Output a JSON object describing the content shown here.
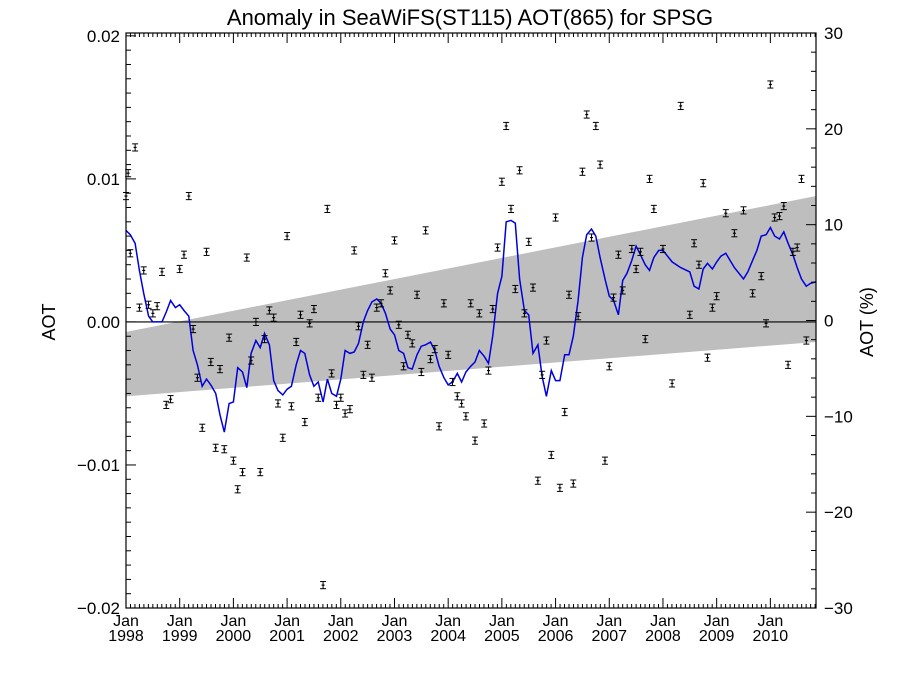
{
  "chart_data": {
    "type": "scatter",
    "title": "Anomaly in SeaWiFS(ST115) AOT(865) for SPSG",
    "ylabel": "AOT",
    "y2label": "AOT (%)",
    "xlabel": "",
    "xlim": [
      1998.0,
      2010.85
    ],
    "ylim": [
      -0.02,
      0.0202
    ],
    "y2lim": [
      -30,
      30
    ],
    "x_ticks": [
      {
        "value": 1998,
        "label_top": "Jan",
        "label_bottom": "1998"
      },
      {
        "value": 1999,
        "label_top": "Jan",
        "label_bottom": "1999"
      },
      {
        "value": 2000,
        "label_top": "Jan",
        "label_bottom": "2000"
      },
      {
        "value": 2001,
        "label_top": "Jan",
        "label_bottom": "2001"
      },
      {
        "value": 2002,
        "label_top": "Jan",
        "label_bottom": "2002"
      },
      {
        "value": 2003,
        "label_top": "Jan",
        "label_bottom": "2003"
      },
      {
        "value": 2004,
        "label_top": "Jan",
        "label_bottom": "2004"
      },
      {
        "value": 2005,
        "label_top": "Jan",
        "label_bottom": "2005"
      },
      {
        "value": 2006,
        "label_top": "Jan",
        "label_bottom": "2006"
      },
      {
        "value": 2007,
        "label_top": "Jan",
        "label_bottom": "2007"
      },
      {
        "value": 2008,
        "label_top": "Jan",
        "label_bottom": "2008"
      },
      {
        "value": 2009,
        "label_top": "Jan",
        "label_bottom": "2009"
      },
      {
        "value": 2010,
        "label_top": "Jan",
        "label_bottom": "2010"
      }
    ],
    "y_ticks": [
      {
        "value": 0.02,
        "label": "0.02"
      },
      {
        "value": 0.01,
        "label": "0.01"
      },
      {
        "value": 0.0,
        "label": "0.00"
      },
      {
        "value": -0.01,
        "label": "−0.01"
      },
      {
        "value": -0.02,
        "label": "−0.02"
      }
    ],
    "y2_ticks": [
      {
        "value": 30,
        "label": "30"
      },
      {
        "value": 20,
        "label": "20"
      },
      {
        "value": 10,
        "label": "10"
      },
      {
        "value": 0,
        "label": "0"
      },
      {
        "value": -10,
        "label": "−10"
      },
      {
        "value": -20,
        "label": "−20"
      },
      {
        "value": -30,
        "label": "−30"
      }
    ],
    "zero_line": 0.0,
    "trend_band": {
      "x": [
        1998.0,
        2010.85
      ],
      "upper": [
        -0.0007,
        0.0088
      ],
      "lower": [
        -0.0052,
        -0.0014
      ],
      "color": "#bebebe"
    },
    "points": {
      "color": "#000000",
      "error": 0.00025,
      "data": [
        [
          1998.0,
          0.0088
        ],
        [
          1998.04,
          0.0104
        ],
        [
          1998.08,
          0.0048
        ],
        [
          1998.17,
          0.0122
        ],
        [
          1998.25,
          0.001
        ],
        [
          1998.33,
          0.0036
        ],
        [
          1998.42,
          0.0012
        ],
        [
          1998.5,
          0.0006
        ],
        [
          1998.58,
          0.0011
        ],
        [
          1998.67,
          0.0035
        ],
        [
          1998.75,
          -0.0058
        ],
        [
          1998.83,
          -0.0054
        ],
        [
          1999.0,
          0.0037
        ],
        [
          1999.08,
          0.0047
        ],
        [
          1999.17,
          0.0088
        ],
        [
          1999.25,
          -0.0005
        ],
        [
          1999.33,
          -0.0039
        ],
        [
          1999.42,
          -0.0074
        ],
        [
          1999.5,
          0.0049
        ],
        [
          1999.58,
          -0.0028
        ],
        [
          1999.67,
          -0.0088
        ],
        [
          1999.75,
          -0.0033
        ],
        [
          1999.83,
          -0.0089
        ],
        [
          1999.92,
          -0.0011
        ],
        [
          2000.0,
          -0.0097
        ],
        [
          2000.08,
          -0.0117
        ],
        [
          2000.17,
          -0.0105
        ],
        [
          2000.25,
          0.0045
        ],
        [
          2000.33,
          -0.0027
        ],
        [
          2000.42,
          0.0
        ],
        [
          2000.5,
          -0.0105
        ],
        [
          2000.58,
          -0.0012
        ],
        [
          2000.67,
          0.0008
        ],
        [
          2000.75,
          0.0003
        ],
        [
          2000.83,
          -0.0057
        ],
        [
          2000.92,
          -0.0081
        ],
        [
          2001.0,
          0.006
        ],
        [
          2001.08,
          -0.0059
        ],
        [
          2001.17,
          -0.0014
        ],
        [
          2001.25,
          0.0005
        ],
        [
          2001.33,
          -0.007
        ],
        [
          2001.42,
          -0.0001
        ],
        [
          2001.5,
          0.0009
        ],
        [
          2001.58,
          -0.0053
        ],
        [
          2001.67,
          -0.0184
        ],
        [
          2001.75,
          0.0079
        ],
        [
          2001.83,
          -0.0036
        ],
        [
          2001.92,
          -0.0058
        ],
        [
          2002.0,
          -0.0053
        ],
        [
          2002.08,
          -0.0064
        ],
        [
          2002.17,
          -0.0061
        ],
        [
          2002.25,
          0.005
        ],
        [
          2002.33,
          -0.0003
        ],
        [
          2002.42,
          -0.0037
        ],
        [
          2002.5,
          -0.0016
        ],
        [
          2002.58,
          -0.0039
        ],
        [
          2002.67,
          0.001
        ],
        [
          2002.75,
          0.0013
        ],
        [
          2002.83,
          0.0034
        ],
        [
          2002.92,
          0.0022
        ],
        [
          2003.0,
          0.0057
        ],
        [
          2003.08,
          -0.0002
        ],
        [
          2003.17,
          -0.0031
        ],
        [
          2003.25,
          -0.0009
        ],
        [
          2003.33,
          -0.0015
        ],
        [
          2003.42,
          0.0019
        ],
        [
          2003.5,
          -0.0035
        ],
        [
          2003.58,
          0.0064
        ],
        [
          2003.67,
          -0.0026
        ],
        [
          2003.75,
          -0.0019
        ],
        [
          2003.83,
          -0.0073
        ],
        [
          2003.92,
          0.0013
        ],
        [
          2004.0,
          -0.0023
        ],
        [
          2004.08,
          -0.0042
        ],
        [
          2004.17,
          -0.0052
        ],
        [
          2004.25,
          -0.0057
        ],
        [
          2004.33,
          -0.0066
        ],
        [
          2004.42,
          0.0013
        ],
        [
          2004.5,
          -0.0083
        ],
        [
          2004.58,
          0.0006
        ],
        [
          2004.67,
          -0.0071
        ],
        [
          2004.75,
          -0.0034
        ],
        [
          2004.83,
          0.0009
        ],
        [
          2004.92,
          0.0052
        ],
        [
          2005.0,
          0.0098
        ],
        [
          2005.08,
          0.0137
        ],
        [
          2005.17,
          0.0079
        ],
        [
          2005.25,
          0.0023
        ],
        [
          2005.33,
          0.0106
        ],
        [
          2005.42,
          0.0006
        ],
        [
          2005.5,
          0.0056
        ],
        [
          2005.58,
          0.0024
        ],
        [
          2005.67,
          -0.0111
        ],
        [
          2005.75,
          -0.0037
        ],
        [
          2005.83,
          -0.0013
        ],
        [
          2005.92,
          -0.0093
        ],
        [
          2006.0,
          0.0073
        ],
        [
          2006.08,
          -0.0116
        ],
        [
          2006.17,
          -0.0063
        ],
        [
          2006.25,
          0.0019
        ],
        [
          2006.33,
          -0.0113
        ],
        [
          2006.42,
          0.0004
        ],
        [
          2006.5,
          0.0105
        ],
        [
          2006.58,
          0.0145
        ],
        [
          2006.67,
          0.0059
        ],
        [
          2006.75,
          0.0137
        ],
        [
          2006.83,
          0.011
        ],
        [
          2006.92,
          -0.0097
        ],
        [
          2007.0,
          -0.0031
        ],
        [
          2007.08,
          0.0017
        ],
        [
          2007.17,
          0.0047
        ],
        [
          2007.25,
          0.0022
        ],
        [
          2007.42,
          0.0051
        ],
        [
          2007.5,
          0.0037
        ],
        [
          2007.58,
          0.0049
        ],
        [
          2007.67,
          -0.0012
        ],
        [
          2007.75,
          0.01
        ],
        [
          2007.83,
          0.0079
        ],
        [
          2008.0,
          0.0051
        ],
        [
          2008.17,
          -0.0043
        ],
        [
          2008.33,
          0.0151
        ],
        [
          2008.5,
          0.0005
        ],
        [
          2008.58,
          0.0055
        ],
        [
          2008.67,
          0.004
        ],
        [
          2008.75,
          0.0097
        ],
        [
          2008.83,
          -0.0025
        ],
        [
          2008.92,
          0.001
        ],
        [
          2009.0,
          0.0018
        ],
        [
          2009.17,
          0.0076
        ],
        [
          2009.33,
          0.0062
        ],
        [
          2009.5,
          0.0078
        ],
        [
          2009.67,
          0.002
        ],
        [
          2009.83,
          0.0032
        ],
        [
          2009.92,
          -0.0001
        ],
        [
          2010.0,
          0.0166
        ],
        [
          2010.08,
          0.0073
        ],
        [
          2010.17,
          0.0074
        ],
        [
          2010.25,
          0.0081
        ],
        [
          2010.33,
          -0.003
        ],
        [
          2010.42,
          0.0049
        ],
        [
          2010.5,
          0.0052
        ],
        [
          2010.58,
          0.01
        ],
        [
          2010.67,
          -0.0013
        ]
      ]
    },
    "smooth_line": {
      "color": "#0000dd",
      "x": [
        1998.0,
        1998.08,
        1998.17,
        1998.25,
        1998.33,
        1998.42,
        1998.5,
        1998.58,
        1998.67,
        1998.75,
        1998.83,
        1998.92,
        1999.0,
        1999.08,
        1999.17,
        1999.25,
        1999.33,
        1999.42,
        1999.5,
        1999.58,
        1999.67,
        1999.75,
        1999.83,
        1999.92,
        2000.0,
        2000.08,
        2000.17,
        2000.25,
        2000.33,
        2000.42,
        2000.5,
        2000.58,
        2000.67,
        2000.75,
        2000.83,
        2000.92,
        2001.0,
        2001.08,
        2001.17,
        2001.25,
        2001.33,
        2001.42,
        2001.5,
        2001.58,
        2001.67,
        2001.75,
        2001.83,
        2001.92,
        2002.0,
        2002.08,
        2002.17,
        2002.25,
        2002.33,
        2002.42,
        2002.5,
        2002.58,
        2002.67,
        2002.75,
        2002.83,
        2002.92,
        2003.0,
        2003.08,
        2003.17,
        2003.25,
        2003.33,
        2003.42,
        2003.5,
        2003.58,
        2003.67,
        2003.75,
        2003.83,
        2003.92,
        2004.0,
        2004.08,
        2004.17,
        2004.25,
        2004.33,
        2004.42,
        2004.5,
        2004.58,
        2004.67,
        2004.75,
        2004.83,
        2004.92,
        2005.0,
        2005.08,
        2005.17,
        2005.25,
        2005.33,
        2005.42,
        2005.5,
        2005.58,
        2005.67,
        2005.75,
        2005.83,
        2005.92,
        2006.0,
        2006.08,
        2006.17,
        2006.25,
        2006.33,
        2006.42,
        2006.5,
        2006.58,
        2006.67,
        2006.75,
        2006.83,
        2006.92,
        2007.0,
        2007.08,
        2007.17,
        2007.25,
        2007.33,
        2007.42,
        2007.5,
        2007.58,
        2007.67,
        2007.75,
        2007.83,
        2007.92,
        2008.0,
        2008.17,
        2008.33,
        2008.5,
        2008.58,
        2008.67,
        2008.75,
        2008.83,
        2008.92,
        2009.0,
        2009.08,
        2009.17,
        2009.33,
        2009.5,
        2009.58,
        2009.67,
        2009.75,
        2009.83,
        2009.92,
        2010.0,
        2010.08,
        2010.17,
        2010.25,
        2010.33,
        2010.42,
        2010.5,
        2010.58,
        2010.67,
        2010.75,
        2010.85
      ],
      "y": [
        0.0064,
        0.0061,
        0.0055,
        0.0036,
        0.002,
        0.0004,
        0.0,
        0.0,
        0.0,
        0.0007,
        0.0015,
        0.001,
        0.0012,
        0.0008,
        0.0004,
        -0.002,
        -0.003,
        -0.0045,
        -0.004,
        -0.0044,
        -0.005,
        -0.0065,
        -0.0077,
        -0.0057,
        -0.0056,
        -0.0032,
        -0.0035,
        -0.0046,
        -0.0022,
        -0.0013,
        -0.0018,
        -0.0008,
        -0.0016,
        -0.0041,
        -0.0048,
        -0.0051,
        -0.0047,
        -0.0045,
        -0.003,
        -0.002,
        -0.0022,
        -0.0037,
        -0.0045,
        -0.0042,
        -0.0056,
        -0.004,
        -0.005,
        -0.0052,
        -0.004,
        -0.002,
        -0.0022,
        -0.0021,
        -0.0015,
        0.0,
        0.0008,
        0.0014,
        0.0016,
        0.0013,
        0.0006,
        -0.0005,
        -0.0009,
        -0.002,
        -0.0022,
        -0.0032,
        -0.0033,
        -0.0023,
        -0.0017,
        -0.0016,
        -0.0014,
        -0.002,
        -0.0031,
        -0.0039,
        -0.0044,
        -0.0042,
        -0.0036,
        -0.0042,
        -0.0035,
        -0.0031,
        -0.0028,
        -0.002,
        -0.0024,
        -0.0029,
        -0.001,
        0.002,
        0.0032,
        0.007,
        0.0071,
        0.0069,
        0.003,
        0.0008,
        0.0005,
        -0.0022,
        -0.0016,
        -0.0038,
        -0.0052,
        -0.0034,
        -0.0041,
        -0.0041,
        -0.0023,
        -0.0023,
        -0.001,
        0.0015,
        0.0045,
        0.0061,
        0.0065,
        0.006,
        0.0045,
        0.003,
        0.0018,
        0.0015,
        0.0005,
        0.0029,
        0.0034,
        0.0043,
        0.0053,
        0.0047,
        0.004,
        0.0036,
        0.0045,
        0.005,
        0.005,
        0.0042,
        0.0038,
        0.0035,
        0.0025,
        0.0023,
        0.0037,
        0.0041,
        0.0037,
        0.0042,
        0.0046,
        0.0048,
        0.0038,
        0.003,
        0.0035,
        0.0043,
        0.005,
        0.006,
        0.0061,
        0.0066,
        0.006,
        0.0058,
        0.0063,
        0.0055,
        0.0047,
        0.0038,
        0.003,
        0.0025,
        0.0027,
        0.0028
      ]
    }
  }
}
